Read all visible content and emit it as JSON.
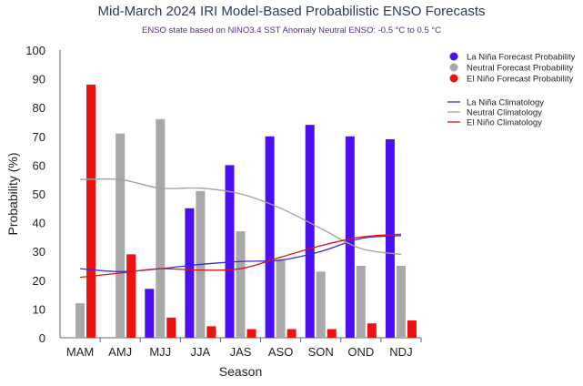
{
  "chart_data": {
    "type": "bar",
    "title": "Mid-March 2024 IRI Model-Based Probabilistic ENSO Forecasts",
    "subtitle": "ENSO state based on NINO3.4 SST Anomaly Neutral ENSO: -0.5 °C to 0.5 °C",
    "xlabel": "Season",
    "ylabel": "Probability (%)",
    "ylim": [
      0,
      100
    ],
    "yticks": [
      0,
      10,
      20,
      30,
      40,
      50,
      60,
      70,
      80,
      90,
      100
    ],
    "grid": false,
    "legend_position": "right",
    "categories": [
      "MAM",
      "AMJ",
      "MJJ",
      "JJA",
      "JAS",
      "ASO",
      "SON",
      "OND",
      "NDJ"
    ],
    "series": [
      {
        "name": "La Niña Forecast Probability",
        "color": "#4b0ff0",
        "values": [
          0,
          0,
          17,
          45,
          60,
          70,
          74,
          70,
          69
        ]
      },
      {
        "name": "Neutral Forecast Probability",
        "color": "#a8a8a8",
        "values": [
          12,
          71,
          76,
          51,
          37,
          27,
          23,
          25,
          25
        ]
      },
      {
        "name": "El Niño Forecast Probability",
        "color": "#ee1111",
        "values": [
          88,
          29,
          7,
          4,
          3,
          3,
          3,
          5,
          6
        ]
      }
    ],
    "lines": [
      {
        "name": "La Niña Climatology",
        "color": "#3b2ad6",
        "values": [
          24,
          23,
          24,
          25.5,
          26.5,
          27,
          30,
          34.5,
          35.5
        ]
      },
      {
        "name": "Neutral Climatology",
        "color": "#a0a0a0",
        "values": [
          55,
          55,
          52,
          52,
          50,
          45,
          38,
          31,
          29
        ]
      },
      {
        "name": "El Niño Climatology",
        "color": "#dd1111",
        "values": [
          21,
          22.5,
          24,
          23.5,
          24,
          28,
          32,
          35,
          36
        ]
      }
    ]
  }
}
